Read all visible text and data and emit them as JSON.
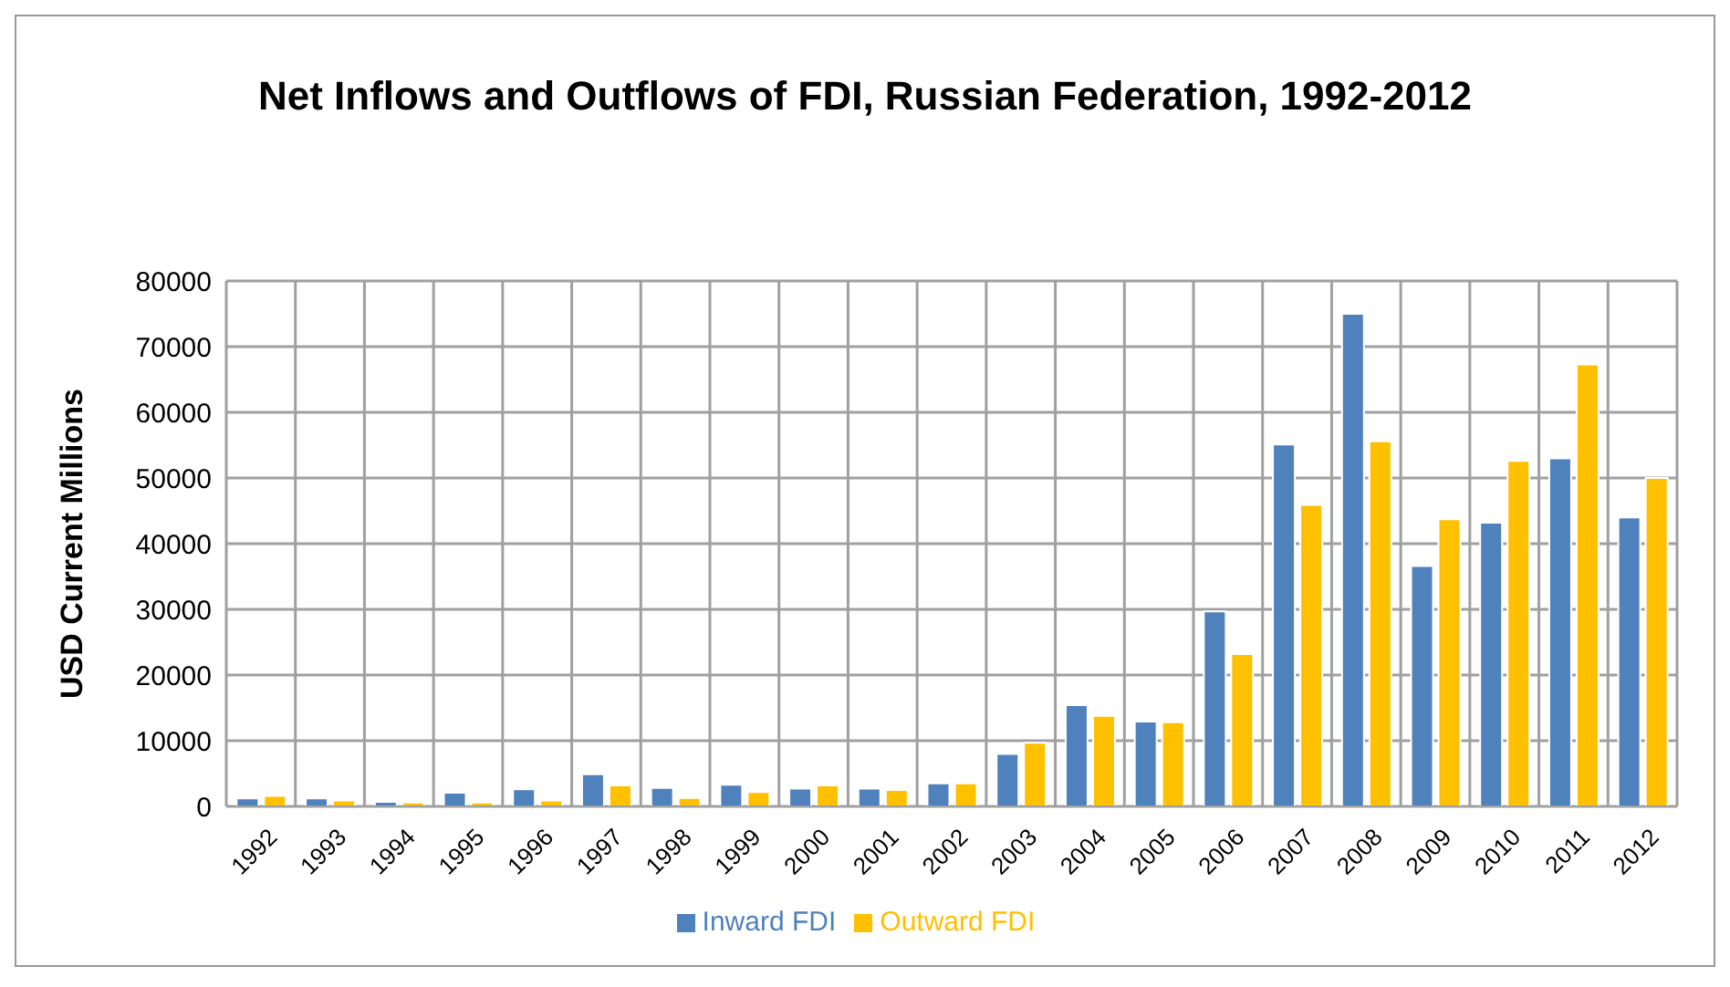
{
  "chart_data": {
    "type": "bar",
    "title": "Net Inflows and Outflows of FDI, Russian Federation, 1992-2012",
    "ylabel": "USD Current Millions",
    "categories": [
      "1992",
      "1993",
      "1994",
      "1995",
      "1996",
      "1997",
      "1998",
      "1999",
      "2000",
      "2001",
      "2002",
      "2003",
      "2004",
      "2005",
      "2006",
      "2007",
      "2008",
      "2009",
      "2010",
      "2011",
      "2012"
    ],
    "series": [
      {
        "name": "Inward FDI",
        "color": "#4f81bd",
        "values": [
          1200,
          1200,
          700,
          2100,
          2600,
          4900,
          2800,
          3300,
          2700,
          2700,
          3500,
          8000,
          15400,
          12900,
          29700,
          55100,
          75000,
          36600,
          43200,
          53000,
          44000
        ]
      },
      {
        "name": "Outward FDI",
        "color": "#ffc000",
        "values": [
          1600,
          900,
          600,
          600,
          900,
          3200,
          1300,
          2200,
          3200,
          2500,
          3500,
          9700,
          13800,
          12800,
          23200,
          45900,
          55600,
          43700,
          52600,
          67300,
          50000
        ]
      }
    ],
    "ylim": [
      0,
      80000
    ],
    "yticks": [
      0,
      10000,
      20000,
      30000,
      40000,
      50000,
      60000,
      70000,
      80000
    ],
    "grid": true,
    "legend": "bottom"
  }
}
